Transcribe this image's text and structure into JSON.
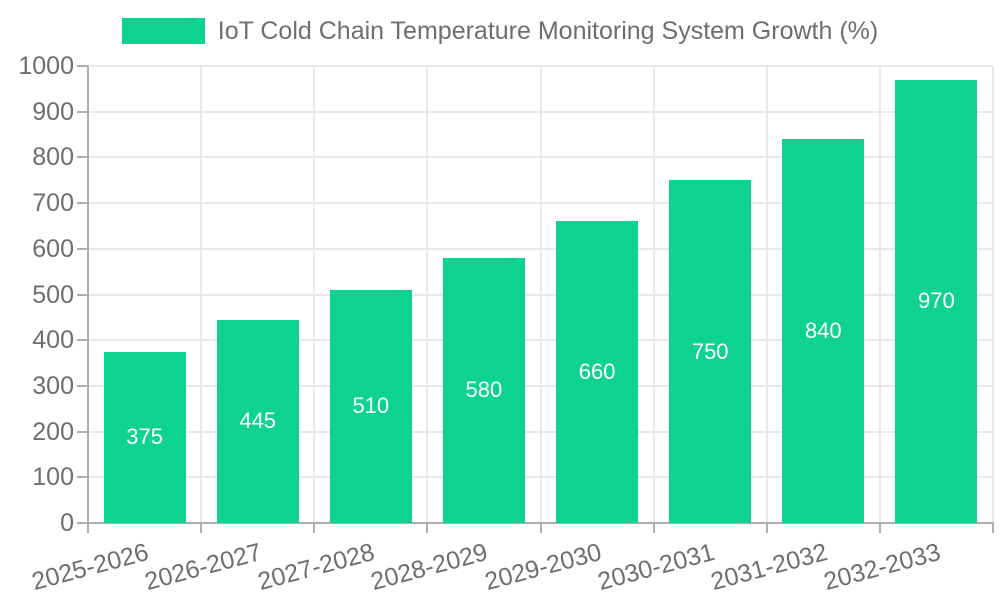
{
  "chart_data": {
    "type": "bar",
    "title": "IoT Cold Chain Temperature Monitoring System Growth (%)",
    "legend_entries": [
      "IoT Cold Chain Temperature Monitoring System Growth (%)"
    ],
    "legend_position": "top-center",
    "categories": [
      "2025-2026",
      "2026-2027",
      "2027-2028",
      "2028-2029",
      "2029-2030",
      "2030-2031",
      "2031-2032",
      "2032-2033"
    ],
    "values": [
      375,
      445,
      510,
      580,
      660,
      750,
      840,
      970
    ],
    "value_labels": [
      "375",
      "445",
      "510",
      "580",
      "660",
      "750",
      "840",
      "970"
    ],
    "xlabel": "",
    "ylabel": "",
    "ylim": [
      0,
      1000
    ],
    "ytick_step": 100,
    "ytick_labels": [
      "0",
      "100",
      "200",
      "300",
      "400",
      "500",
      "600",
      "700",
      "800",
      "900",
      "1000"
    ],
    "grid": true,
    "x_label_rotation_deg": -15,
    "colors": {
      "bar": "#0ed291",
      "value_label": "#ffffff",
      "axis_text": "#6e6e6e",
      "gridline": "#e9e9e9",
      "axis_line": "#aeaeae",
      "background": "#ffffff"
    }
  }
}
